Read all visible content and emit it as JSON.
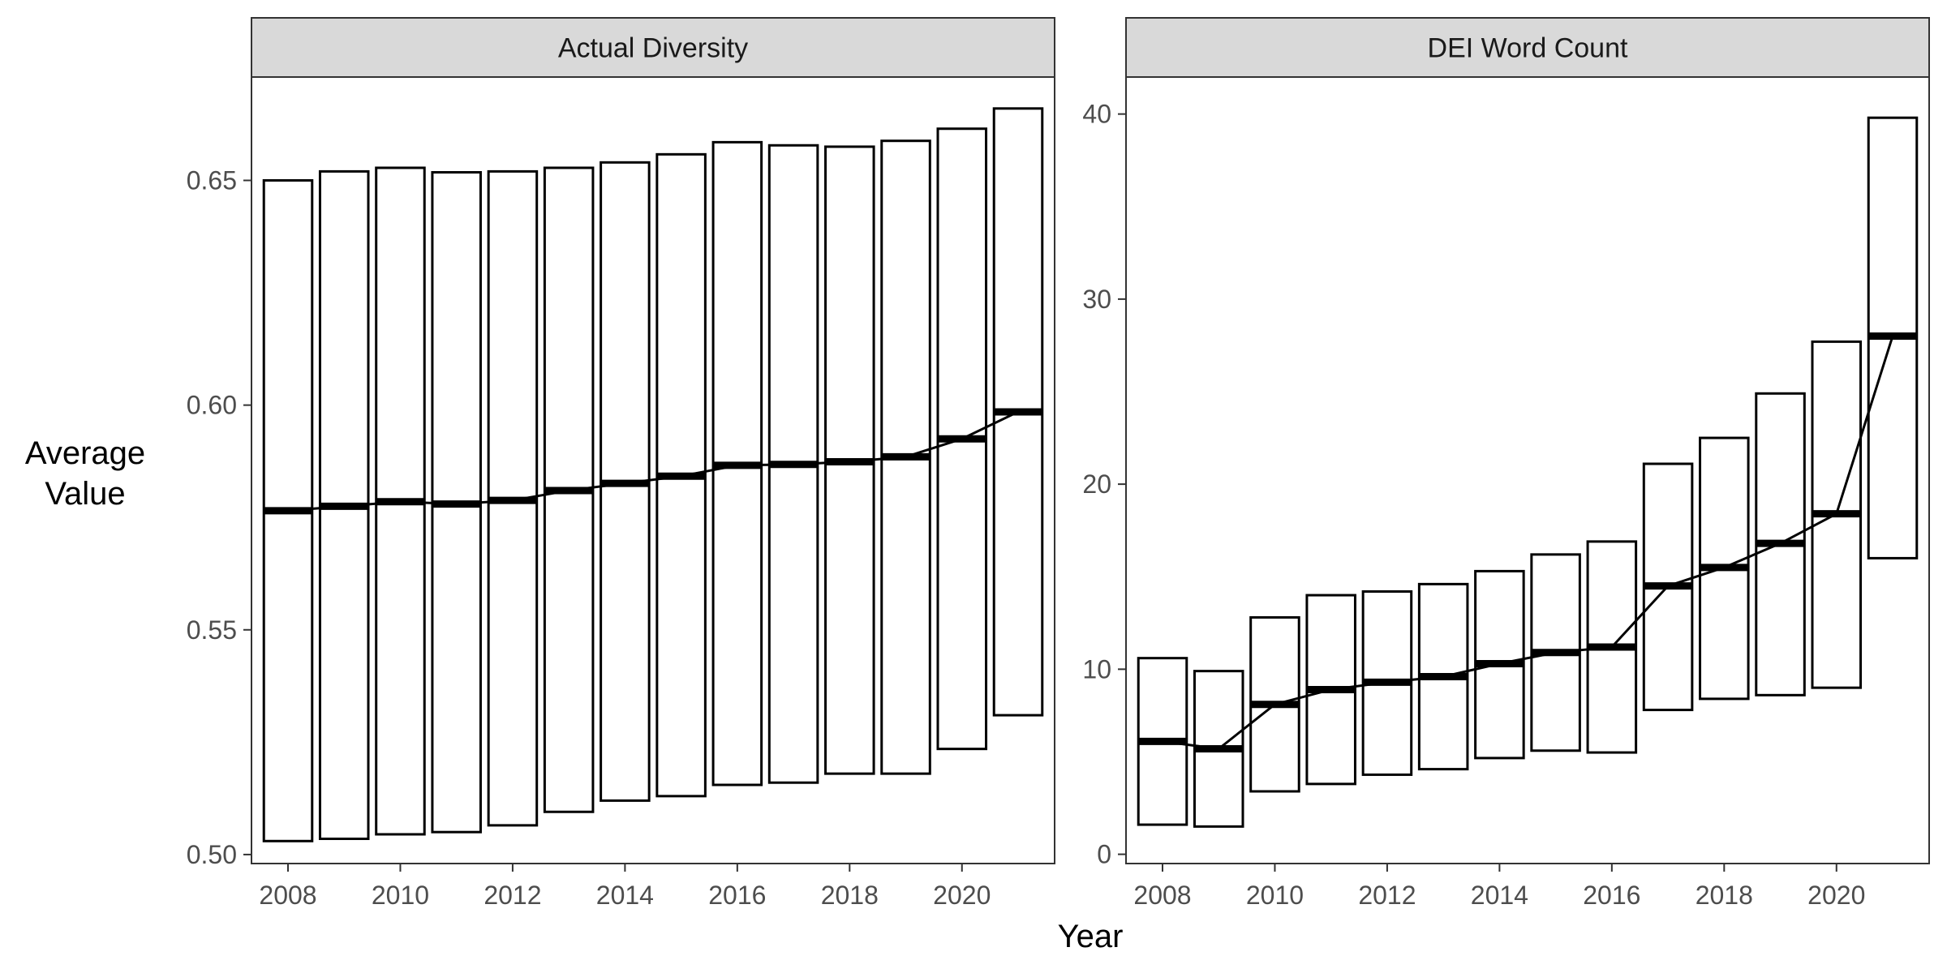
{
  "chart_data": {
    "type": "crossbar",
    "x_label": "Year",
    "y_label_lines": [
      "Average",
      "Value"
    ],
    "x_ticks": [
      2008,
      2010,
      2012,
      2014,
      2016,
      2018,
      2020
    ],
    "panels": [
      {
        "title": "Actual Diversity",
        "ylim": [
          0.498,
          0.673
        ],
        "y_ticks": [
          0.5,
          0.55,
          0.6,
          0.65
        ],
        "y_tick_labels": [
          "0.50",
          "0.55",
          "0.60",
          "0.65"
        ],
        "x": [
          2008,
          2009,
          2010,
          2011,
          2012,
          2013,
          2014,
          2015,
          2016,
          2017,
          2018,
          2019,
          2020,
          2021
        ],
        "lower": [
          0.503,
          0.5035,
          0.5045,
          0.505,
          0.5065,
          0.5095,
          0.512,
          0.513,
          0.5155,
          0.516,
          0.518,
          0.518,
          0.5235,
          0.531
        ],
        "middle": [
          0.5765,
          0.5775,
          0.5785,
          0.578,
          0.5788,
          0.581,
          0.5826,
          0.5842,
          0.5866,
          0.5868,
          0.5874,
          0.5885,
          0.5925,
          0.5985
        ],
        "upper": [
          0.65,
          0.652,
          0.6528,
          0.6518,
          0.652,
          0.6528,
          0.654,
          0.6558,
          0.6585,
          0.6578,
          0.6575,
          0.6588,
          0.6615,
          0.666
        ]
      },
      {
        "title": "DEI Word Count",
        "ylim": [
          -0.5,
          42
        ],
        "y_ticks": [
          0,
          10,
          20,
          30,
          40
        ],
        "y_tick_labels": [
          "0",
          "10",
          "20",
          "30",
          "40"
        ],
        "x": [
          2008,
          2009,
          2010,
          2011,
          2012,
          2013,
          2014,
          2015,
          2016,
          2017,
          2018,
          2019,
          2020,
          2021
        ],
        "lower": [
          1.6,
          1.5,
          3.4,
          3.8,
          4.3,
          4.6,
          5.2,
          5.6,
          5.5,
          7.8,
          8.4,
          8.6,
          9.0,
          16.0
        ],
        "middle": [
          6.1,
          5.7,
          8.1,
          8.9,
          9.3,
          9.6,
          10.3,
          10.9,
          11.2,
          14.5,
          15.5,
          16.8,
          18.4,
          28.0
        ],
        "upper": [
          10.6,
          9.9,
          12.8,
          14.0,
          14.2,
          14.6,
          15.3,
          16.2,
          16.9,
          21.1,
          22.5,
          24.9,
          27.7,
          39.8
        ]
      }
    ]
  }
}
